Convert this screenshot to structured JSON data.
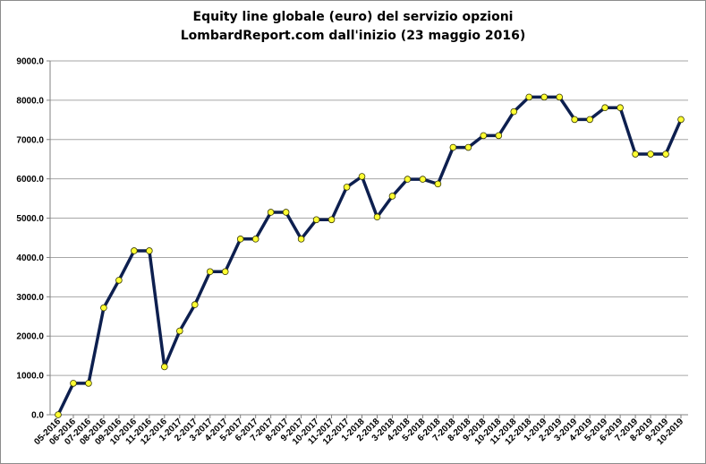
{
  "chart_data": {
    "type": "line",
    "title": "Equity line globale (euro) del servizio opzioni",
    "subtitle": "LombardReport.com dall'inizio (23 maggio 2016)",
    "xlabel": "",
    "ylabel": "",
    "ylim": [
      0,
      9000
    ],
    "y_ticks": [
      "0.0",
      "1000.0",
      "2000.0",
      "3000.0",
      "4000.0",
      "5000.0",
      "6000.0",
      "7000.0",
      "8000.0",
      "9000.0"
    ],
    "grid": true,
    "legend": "none",
    "categories": [
      "05-2016",
      "06-2016",
      "07-2016",
      "08-2016",
      "09-2016",
      "10-2016",
      "11-2016",
      "12-2016",
      "1-2017",
      "2-2017",
      "3-2017",
      "4-2017",
      "5-2017",
      "6-2017",
      "7-2017",
      "8-2017",
      "9-2017",
      "10-2017",
      "11-2017",
      "12-2017",
      "1-2018",
      "2-2018",
      "3-2018",
      "4-2018",
      "5-2018",
      "6-2018",
      "7-2018",
      "8-2018",
      "9-2018",
      "10-2018",
      "11-2018",
      "12-2018",
      "1-2019",
      "2-2019",
      "3-2019",
      "4-2019",
      "5-2019",
      "6-2019",
      "7-2019",
      "8-2019",
      "9-2019",
      "10-2019"
    ],
    "series": [
      {
        "values": [
          0,
          800,
          800,
          2720,
          3420,
          4170,
          4170,
          1220,
          2130,
          2800,
          3640,
          3640,
          4470,
          4470,
          5150,
          5150,
          4470,
          4960,
          4960,
          5790,
          6060,
          5030,
          5560,
          5990,
          5990,
          5870,
          6800,
          6800,
          7100,
          7100,
          7710,
          8080,
          8080,
          8080,
          7510,
          7510,
          7810,
          7810,
          6630,
          6630,
          6630,
          7510
        ]
      }
    ],
    "colors": {
      "line": "#0d1f4f",
      "marker_fill": "#ffff33",
      "marker_stroke": "#3a3a00",
      "grid": "#a6a6a6"
    }
  }
}
